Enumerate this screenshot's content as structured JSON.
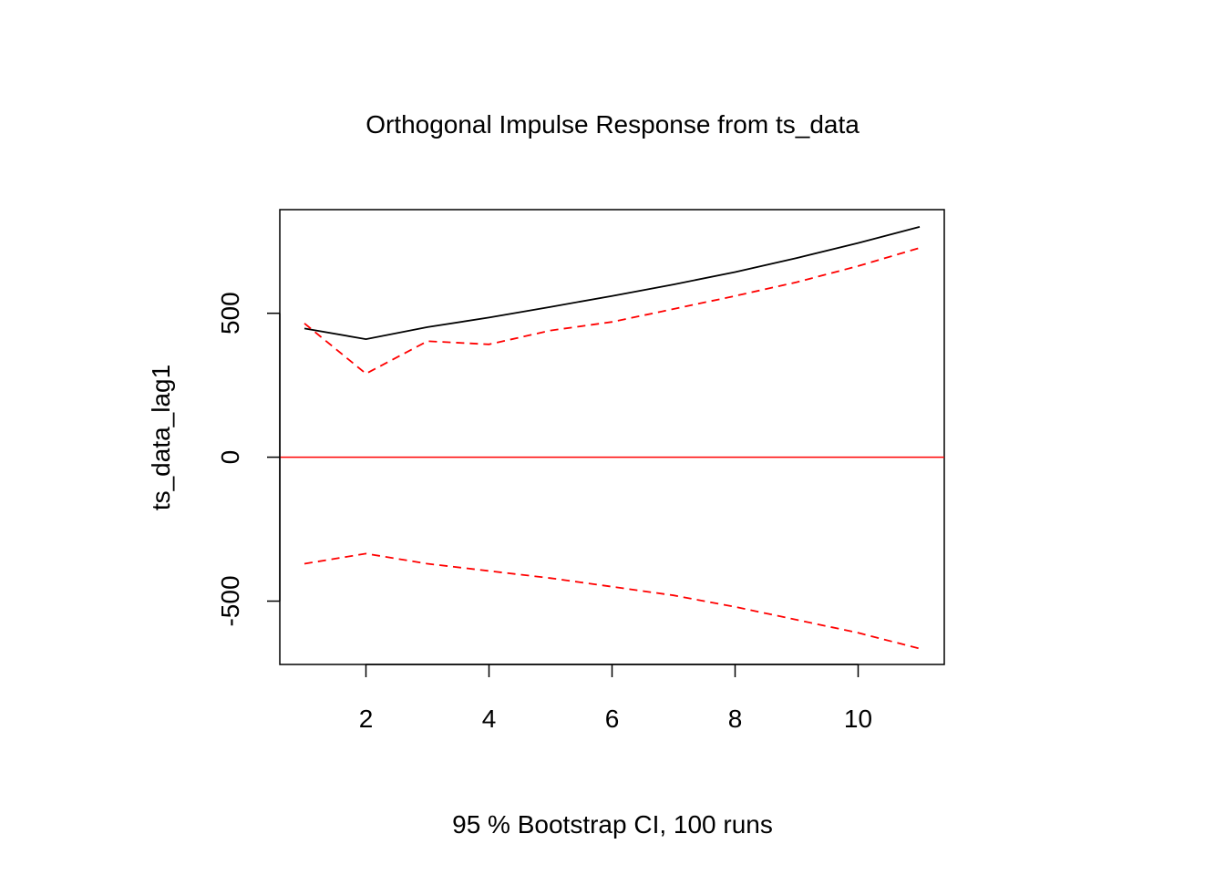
{
  "chart_data": {
    "type": "line",
    "title": "Orthogonal Impulse Response from ts_data",
    "xlabel": "95 % Bootstrap CI,  100 runs",
    "ylabel": "ts_data_lag1",
    "x": [
      1,
      2,
      3,
      4,
      5,
      6,
      7,
      8,
      9,
      10,
      11
    ],
    "xlim": [
      0.6,
      11.4
    ],
    "ylim": [
      -720,
      860
    ],
    "xticks": [
      2,
      4,
      6,
      8,
      10
    ],
    "xtick_labels": [
      "2",
      "4",
      "6",
      "8",
      "10"
    ],
    "yticks": [
      -500,
      0,
      500
    ],
    "ytick_labels": [
      "-500",
      "0",
      "500"
    ],
    "reference_line": 0,
    "grid": false,
    "series": [
      {
        "role": "response",
        "color": "#000000",
        "dash": "solid",
        "values": [
          447,
          410,
          452,
          485,
          522,
          560,
          600,
          643,
          692,
          744,
          800
        ]
      },
      {
        "role": "upper-ci",
        "color": "#ff0000",
        "dash": "dashed",
        "values": [
          465,
          290,
          403,
          392,
          440,
          470,
          515,
          560,
          608,
          664,
          727
        ]
      },
      {
        "role": "lower-ci",
        "color": "#ff0000",
        "dash": "dashed",
        "values": [
          -370,
          -335,
          -370,
          -395,
          -420,
          -450,
          -480,
          -520,
          -565,
          -610,
          -665
        ]
      }
    ],
    "colors": {
      "zero_line": "#ff0000",
      "frame": "#000000"
    }
  }
}
